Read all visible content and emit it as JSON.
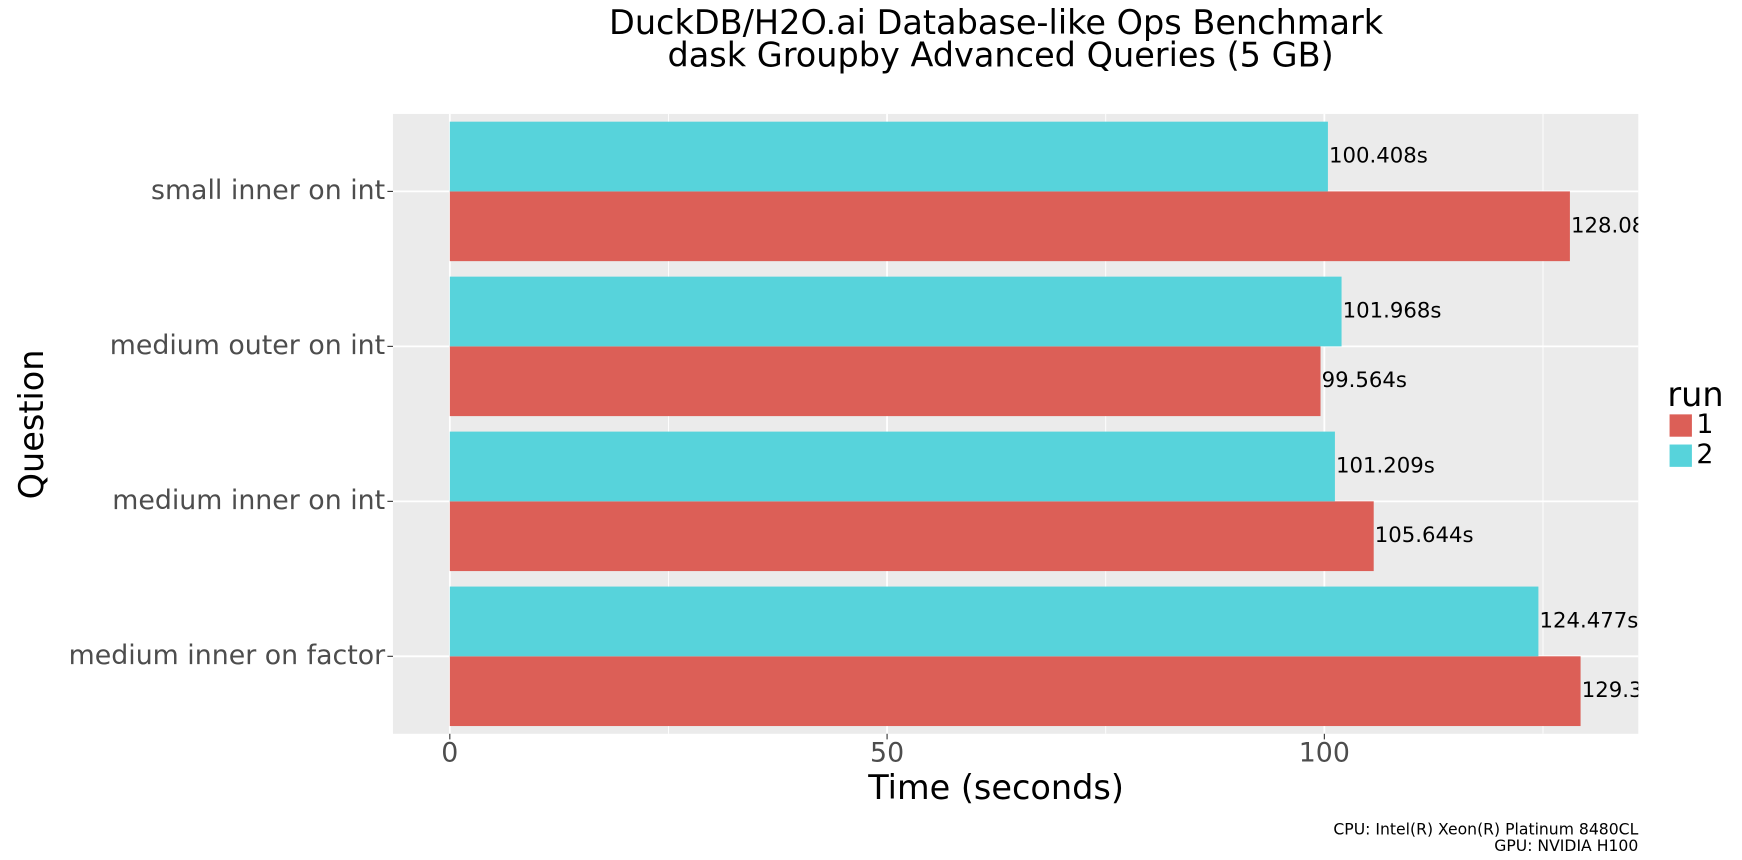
{
  "chart_data": {
    "type": "bar",
    "orientation": "horizontal",
    "title": "DuckDB/H2O.ai Database-like Ops Benchmark",
    "subtitle": "dask Groupby Advanced Queries (5 GB)",
    "x_label": "Time (seconds)",
    "y_label": "Question",
    "categories": [
      "small inner on int",
      "medium outer on int",
      "medium inner on int",
      "medium inner on factor"
    ],
    "series": [
      {
        "name": "1",
        "color": "#dc5f57",
        "values": [
          128.08,
          99.564,
          105.644,
          129.3
        ],
        "value_labels": [
          "128.08",
          "99.564s",
          "105.644s",
          "129.3"
        ]
      },
      {
        "name": "2",
        "color": "#57d3db",
        "values": [
          100.408,
          101.968,
          101.209,
          124.477
        ],
        "value_labels": [
          "100.408s",
          "101.968s",
          "101.209s",
          "124.477s"
        ]
      }
    ],
    "legend_title": "run",
    "legend_position": "right",
    "xlim": [
      -6.5,
      135.9
    ],
    "xticks": [
      0,
      50,
      100
    ],
    "minor_xticks": [
      25,
      75,
      125
    ],
    "grid": true,
    "caption": [
      "CPU: Intel(R) Xeon(R) Platinum 8480CL",
      "GPU: NVIDIA H100"
    ]
  }
}
